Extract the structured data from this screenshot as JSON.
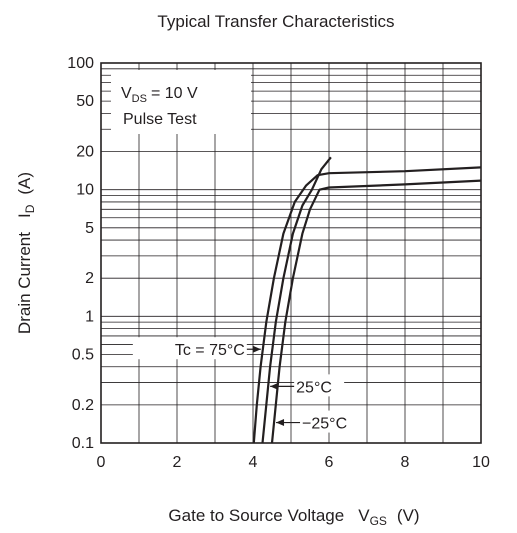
{
  "chart_data": {
    "type": "line",
    "title": "Typical Transfer Characteristics",
    "xlabel": {
      "main": "Gate to Source Voltage",
      "symbol": "V",
      "sub": "GS",
      "unit": "(V)"
    },
    "ylabel": {
      "main": "Drain Current",
      "symbol": "I",
      "sub": "D",
      "unit": "(A)"
    },
    "xlim": [
      0,
      10
    ],
    "ylim": [
      0.1,
      100
    ],
    "yscale": "log",
    "grid": true,
    "x_ticks": [
      "0",
      "2",
      "4",
      "6",
      "8",
      "10"
    ],
    "y_ticks": [
      "0.1",
      "0.2",
      "0.5",
      "1",
      "2",
      "5",
      "10",
      "20",
      "50",
      "100"
    ],
    "conditions": {
      "line1": {
        "symbol": "V",
        "sub": "DS",
        "rest": "= 10 V"
      },
      "line2": "Pulse Test"
    },
    "series": [
      {
        "name": "Tc = 75°C",
        "points": [
          [
            4.02,
            0.1
          ],
          [
            4.1,
            0.2
          ],
          [
            4.2,
            0.4
          ],
          [
            4.35,
            0.9
          ],
          [
            4.55,
            2
          ],
          [
            4.8,
            4.5
          ],
          [
            5.1,
            8
          ],
          [
            5.4,
            10.8
          ],
          [
            5.7,
            13
          ],
          [
            6,
            13.5
          ],
          [
            8,
            14
          ],
          [
            10,
            15
          ]
        ]
      },
      {
        "name": "25°C",
        "points": [
          [
            4.25,
            0.1
          ],
          [
            4.35,
            0.2
          ],
          [
            4.45,
            0.4
          ],
          [
            4.6,
            0.9
          ],
          [
            4.8,
            2
          ],
          [
            5.05,
            4.5
          ],
          [
            5.3,
            7.5
          ],
          [
            5.55,
            10
          ],
          [
            5.8,
            14.5
          ],
          [
            6.05,
            18
          ]
        ]
      },
      {
        "name": "−25°C",
        "points": [
          [
            4.5,
            0.1
          ],
          [
            4.6,
            0.2
          ],
          [
            4.7,
            0.4
          ],
          [
            4.85,
            0.9
          ],
          [
            5.05,
            2
          ],
          [
            5.3,
            4.5
          ],
          [
            5.5,
            7
          ],
          [
            5.75,
            10
          ],
          [
            6,
            10.4
          ],
          [
            8,
            11
          ],
          [
            10,
            11.8
          ]
        ]
      }
    ],
    "annotations": [
      {
        "text": "Tc = 75°C",
        "target_series": 0,
        "y": 0.55
      },
      {
        "text": "25°C",
        "target_series": 1,
        "y": 0.28
      },
      {
        "text": "−25°C",
        "target_series": 2,
        "y": 0.145
      }
    ]
  }
}
